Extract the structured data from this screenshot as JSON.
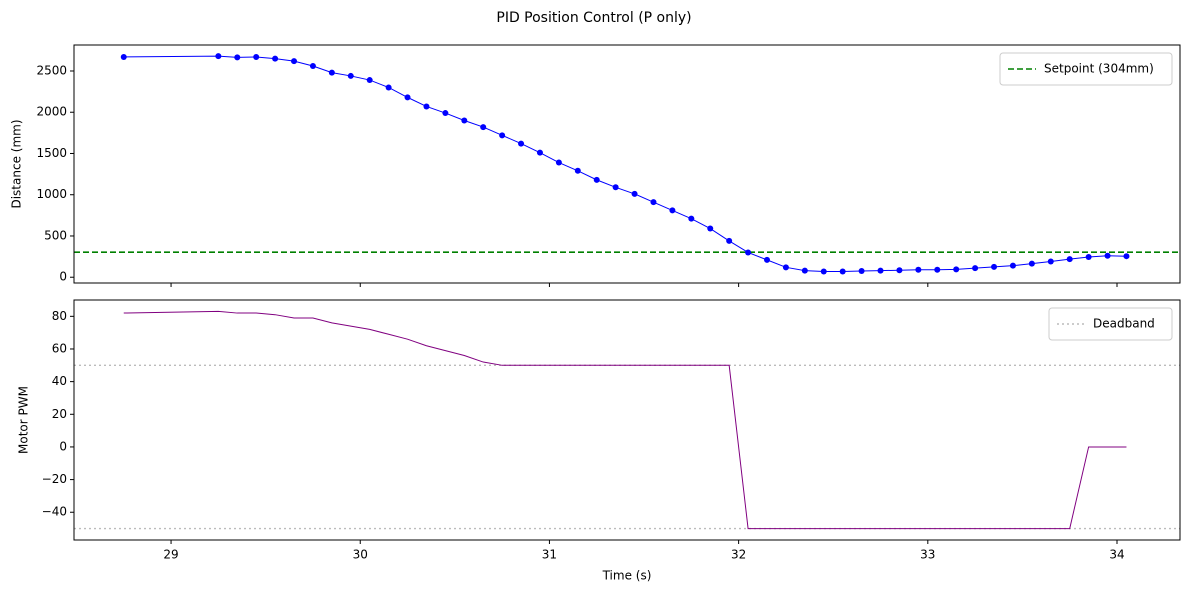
{
  "title": "PID Position Control (P only)",
  "chart_data": [
    {
      "type": "line",
      "ylabel": "Distance (mm)",
      "show_xtick_labels": false,
      "x": [
        28.75,
        29.25,
        29.35,
        29.45,
        29.55,
        29.65,
        29.75,
        29.85,
        29.95,
        30.05,
        30.15,
        30.25,
        30.35,
        30.45,
        30.55,
        30.65,
        30.75,
        30.85,
        30.95,
        31.05,
        31.15,
        31.25,
        31.35,
        31.45,
        31.55,
        31.65,
        31.75,
        31.85,
        31.95,
        32.05,
        32.15,
        32.25,
        32.35,
        32.45,
        32.55,
        32.65,
        32.75,
        32.85,
        32.95,
        33.05,
        33.15,
        33.25,
        33.35,
        33.45,
        33.55,
        33.65,
        33.75,
        33.85,
        33.95,
        34.05
      ],
      "series": [
        {
          "color": "#0000ff",
          "marker": true,
          "values": [
            2670,
            2680,
            2665,
            2670,
            2650,
            2620,
            2560,
            2480,
            2440,
            2390,
            2300,
            2180,
            2070,
            1990,
            1900,
            1820,
            1720,
            1620,
            1510,
            1390,
            1290,
            1180,
            1090,
            1010,
            910,
            810,
            710,
            590,
            440,
            300,
            210,
            120,
            80,
            70,
            70,
            75,
            80,
            85,
            90,
            90,
            95,
            110,
            125,
            140,
            165,
            190,
            220,
            245,
            260,
            255
          ]
        }
      ],
      "hlines": [
        {
          "name": "Setpoint (304mm)",
          "value": 304,
          "color": "#008000",
          "style": "dashed"
        }
      ],
      "xlim": [
        28.487,
        34.333
      ],
      "xticks": [
        29,
        30,
        31,
        32,
        33,
        34
      ],
      "ylim": [
        -70,
        2815
      ],
      "yticks": [
        0,
        500,
        1000,
        1500,
        2000,
        2500
      ]
    },
    {
      "type": "line",
      "xlabel": "Time (s)",
      "ylabel": "Motor PWM",
      "x": [
        28.75,
        29.25,
        29.35,
        29.45,
        29.55,
        29.65,
        29.75,
        29.85,
        29.95,
        30.05,
        30.15,
        30.25,
        30.35,
        30.45,
        30.55,
        30.65,
        30.75,
        30.85,
        30.95,
        31.05,
        31.15,
        31.25,
        31.35,
        31.45,
        31.55,
        31.65,
        31.75,
        31.85,
        31.95,
        32.05,
        32.15,
        32.25,
        32.35,
        32.45,
        32.55,
        32.65,
        32.75,
        32.85,
        32.95,
        33.05,
        33.15,
        33.25,
        33.35,
        33.45,
        33.55,
        33.65,
        33.75,
        33.85,
        33.95,
        34.05
      ],
      "series": [
        {
          "color": "#800080",
          "marker": false,
          "values": [
            82,
            83,
            82,
            82,
            81,
            79,
            79,
            76,
            74,
            72,
            69,
            66,
            62,
            59,
            56,
            52,
            50,
            50,
            50,
            50,
            50,
            50,
            50,
            50,
            50,
            50,
            50,
            50,
            50,
            -50,
            -50,
            -50,
            -50,
            -50,
            -50,
            -50,
            -50,
            -50,
            -50,
            -50,
            -50,
            -50,
            -50,
            -50,
            -50,
            -50,
            -50,
            0,
            0,
            0
          ]
        }
      ],
      "hlines": [
        {
          "name": "Deadband",
          "value": 50,
          "color": "#bbbbbb",
          "style": "dotted"
        },
        {
          "value": -50,
          "color": "#bbbbbb",
          "style": "dotted"
        }
      ],
      "xlim": [
        28.487,
        34.333
      ],
      "xticks": [
        29,
        30,
        31,
        32,
        33,
        34
      ],
      "ylim": [
        -57,
        90
      ],
      "yticks": [
        {
          "value": -40,
          "label": "−40"
        },
        {
          "value": -20,
          "label": "−20"
        },
        0,
        20,
        40,
        60,
        80
      ]
    }
  ]
}
